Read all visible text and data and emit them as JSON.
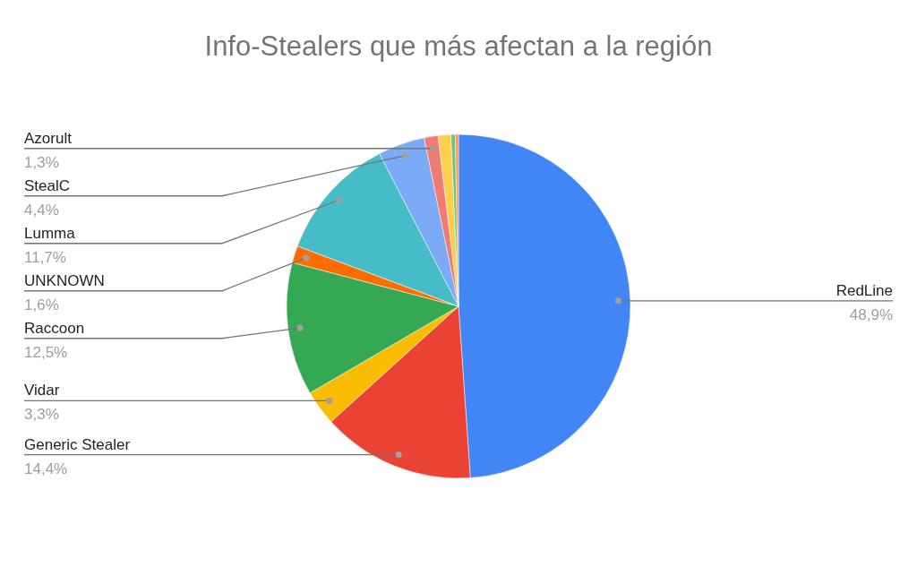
{
  "chart_data": {
    "type": "pie",
    "title": "Info-Stealers que más afectan a la región",
    "categories": [
      "RedLine",
      "Generic Stealer",
      "Vidar",
      "Raccoon",
      "UNKNOWN",
      "Lumma",
      "StealC",
      "Azorult",
      null,
      null,
      null
    ],
    "values": [
      48.9,
      14.4,
      3.3,
      12.5,
      1.6,
      11.7,
      4.4,
      1.3,
      1.2,
      0.4,
      0.3
    ],
    "colors": [
      "#4285f4",
      "#ea4335",
      "#fbbc04",
      "#34a853",
      "#ff6d01",
      "#46bdc6",
      "#7baaf7",
      "#f07b72",
      "#fcd04f",
      "#71c287",
      "#ff994d"
    ],
    "value_labels": [
      "48,9%",
      "14,4%",
      "3,3%",
      "12,5%",
      "1,6%",
      "11,7%",
      "4,4%",
      "1,3%",
      null,
      null,
      null
    ]
  }
}
